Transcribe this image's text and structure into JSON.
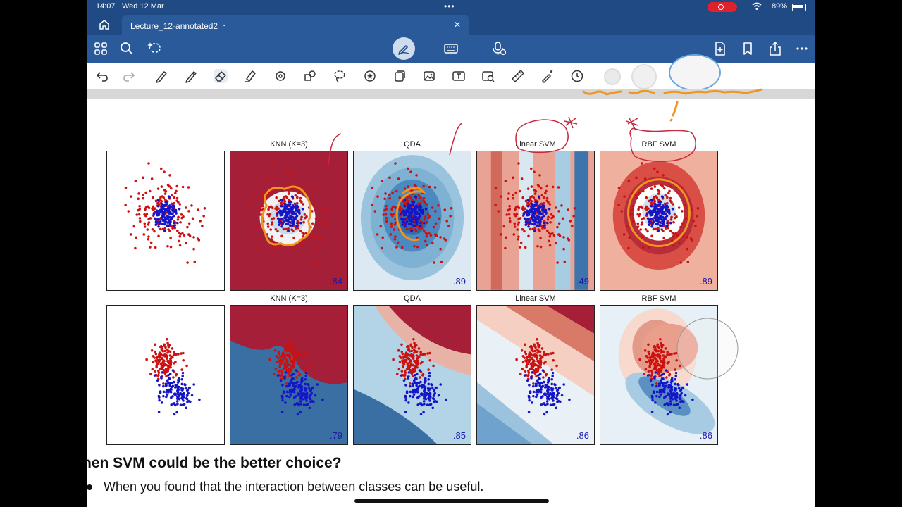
{
  "status": {
    "time": "14:07",
    "date": "Wed 12 Mar",
    "battery": "89%",
    "battery_level": 0.89
  },
  "tab": {
    "title": "Lecture_12-annotated2"
  },
  "icons": {
    "nav_left": [
      "grid-icon",
      "search-icon",
      "lasso-magic-icon"
    ],
    "nav_center": [
      "pen-mode-icon",
      "keyboard-icon",
      "microphone-icon"
    ],
    "nav_right": [
      "add-page-icon",
      "bookmark-icon",
      "share-icon",
      "more-icon"
    ],
    "tools": [
      "undo-icon",
      "redo-icon",
      "pen-icon",
      "pencil-icon",
      "eraser-icon",
      "highlighter-icon",
      "shapes-icon",
      "elements-icon",
      "lasso-icon",
      "sticker-icon",
      "sticky-note-icon",
      "image-icon",
      "text-box-icon",
      "camera-icon",
      "ruler-icon",
      "laser-pointer-icon",
      "timer-icon"
    ]
  },
  "colors": {
    "chrome": "#1f4a83",
    "chrome_light": "#2a5a99",
    "red_point": "#cc1111",
    "blue_point": "#1515c8",
    "annotation_orange": "#f0951e",
    "annotation_red": "#c8283c"
  },
  "figure": {
    "row1": {
      "labels": [
        "KNN (K=3)",
        "QDA",
        "Linear SVM",
        "RBF SVM"
      ],
      "scores": [
        ".84",
        ".89",
        ".49",
        ".89"
      ]
    },
    "row2": {
      "labels": [
        "KNN (K=3)",
        "QDA",
        "Linear SVM",
        "RBF SVM"
      ],
      "scores": [
        ".79",
        ".85",
        ".86",
        ".86"
      ]
    }
  },
  "slide": {
    "heading": "hen SVM could be the better choice?",
    "bullet": "When you found that the interaction between classes can be useful."
  }
}
